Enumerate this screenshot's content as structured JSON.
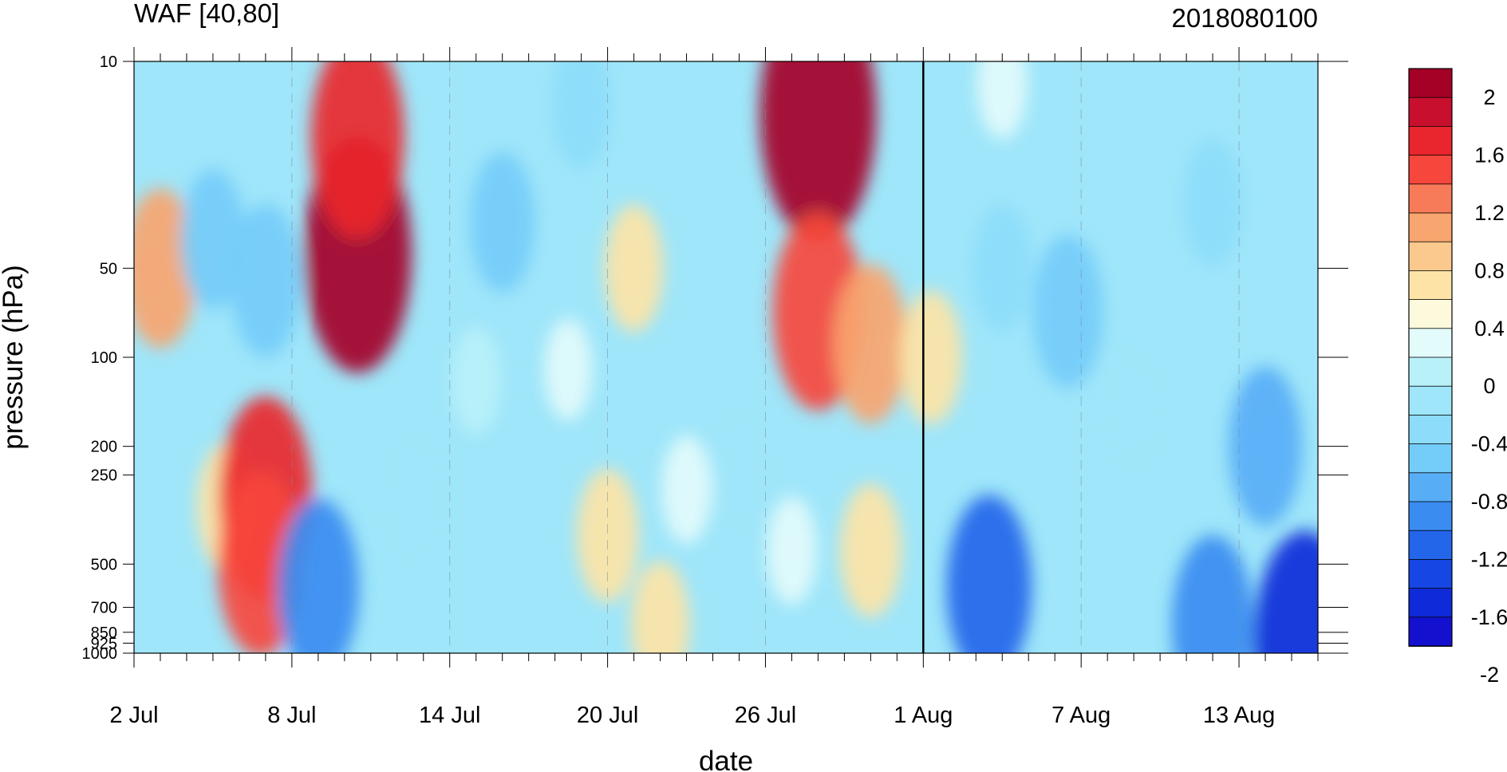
{
  "chart_data": {
    "type": "heatmap",
    "title": "WAF [40,80]",
    "subtitle": "2018080100",
    "xlabel": "date",
    "ylabel": "pressure (hPa)",
    "x_ticks": [
      "2 Jul",
      "8 Jul",
      "14 Jul",
      "20 Jul",
      "26 Jul",
      "1 Aug",
      "7 Aug",
      "13 Aug"
    ],
    "x_tick_days": [
      0,
      6,
      12,
      18,
      24,
      30,
      36,
      42
    ],
    "x_range_days": [
      0,
      45
    ],
    "y_ticks": [
      "10",
      "50",
      "100",
      "200",
      "250",
      "500",
      "700",
      "850",
      "925",
      "1000"
    ],
    "y_tick_values": [
      10,
      50,
      100,
      200,
      250,
      500,
      700,
      850,
      925,
      1000
    ],
    "y_scale": "log",
    "y_range": [
      1000,
      10
    ],
    "forecast_start": "1 Aug",
    "colorbar": {
      "labels": [
        "2",
        "1.6",
        "1.2",
        "0.8",
        "0.4",
        "0",
        "-0.4",
        "-0.8",
        "-1.2",
        "-1.6",
        "-2"
      ],
      "colors": [
        "#a50026",
        "#c8102e",
        "#e9262d",
        "#f7463c",
        "#f77b58",
        "#f9a56f",
        "#fbc98d",
        "#fde4a6",
        "#fdf9dd",
        "#e3fbfb",
        "#b9f1f8",
        "#9fe6fa",
        "#8cdcfa",
        "#74ccf9",
        "#58aef6",
        "#3a8cf1",
        "#2466ea",
        "#1646e3",
        "#0f2ad8",
        "#1410cf"
      ]
    },
    "fields": [
      {
        "day": 1.0,
        "p": 50,
        "v": 1.0
      },
      {
        "day": 3.5,
        "p": 320,
        "v": 0.5
      },
      {
        "day": 5.0,
        "p": 300,
        "v": 1.7
      },
      {
        "day": 4.8,
        "p": 500,
        "v": 1.4
      },
      {
        "day": 3.0,
        "p": 40,
        "v": -0.7
      },
      {
        "day": 5.0,
        "p": 55,
        "v": -0.9
      },
      {
        "day": 8.5,
        "p": 45,
        "v": 2.2
      },
      {
        "day": 8.5,
        "p": 18,
        "v": 1.7
      },
      {
        "day": 7.0,
        "p": 600,
        "v": -1.3
      },
      {
        "day": 10.5,
        "p": 300,
        "v": -0.4
      },
      {
        "day": 13.0,
        "p": 120,
        "v": -0.2
      },
      {
        "day": 14.0,
        "p": 35,
        "v": -0.7
      },
      {
        "day": 16.5,
        "p": 110,
        "v": 0.1
      },
      {
        "day": 18.0,
        "p": 400,
        "v": 0.6
      },
      {
        "day": 19.0,
        "p": 50,
        "v": 0.5
      },
      {
        "day": 17.0,
        "p": 14,
        "v": -0.5
      },
      {
        "day": 20.0,
        "p": 800,
        "v": 0.5
      },
      {
        "day": 21.0,
        "p": 280,
        "v": 0.2
      },
      {
        "day": 23.0,
        "p": 240,
        "v": -0.3
      },
      {
        "day": 26.0,
        "p": 15,
        "v": 2.5
      },
      {
        "day": 26.0,
        "p": 70,
        "v": 1.6
      },
      {
        "day": 28.0,
        "p": 90,
        "v": 1.0
      },
      {
        "day": 25.0,
        "p": 450,
        "v": 0.2
      },
      {
        "day": 28.0,
        "p": 450,
        "v": 0.6
      },
      {
        "day": 30.3,
        "p": 100,
        "v": 0.6
      },
      {
        "day": 32.5,
        "p": 600,
        "v": -1.4
      },
      {
        "day": 33.0,
        "p": 50,
        "v": -0.5
      },
      {
        "day": 35.5,
        "p": 70,
        "v": -0.9
      },
      {
        "day": 33.0,
        "p": 12,
        "v": 0.2
      },
      {
        "day": 38.0,
        "p": 150,
        "v": -0.3
      },
      {
        "day": 43.0,
        "p": 200,
        "v": -1.0
      },
      {
        "day": 44.5,
        "p": 920,
        "v": -2.0
      },
      {
        "day": 41.0,
        "p": 800,
        "v": -1.3
      },
      {
        "day": 41.0,
        "p": 30,
        "v": -0.5
      }
    ]
  }
}
